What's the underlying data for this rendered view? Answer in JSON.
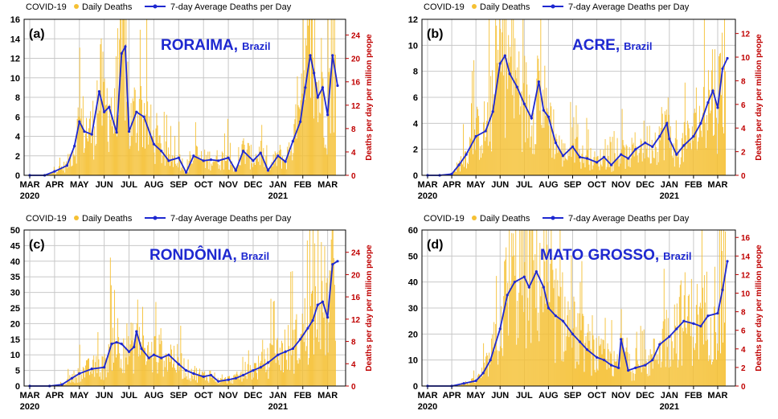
{
  "colors": {
    "daily_bar": "#F5C033",
    "average_line": "#1E28D0",
    "right_axis": "#C00000",
    "region_title": "#1E28D0",
    "grid": "#C8C8C8"
  },
  "legend": {
    "source": "COVID-19",
    "daily": "Daily Deaths",
    "average": "7-day Average Deaths per Day"
  },
  "country_suffix": "Brazil",
  "right_axis_label": "Deaths per day per million peope",
  "months": [
    "MAR",
    "APR",
    "MAY",
    "JUN",
    "JUL",
    "AUG",
    "SEP",
    "OCT",
    "NOV",
    "DEC",
    "JAN",
    "FEB",
    "MAR"
  ],
  "years": [
    "2020",
    "2021"
  ],
  "chart_data": [
    {
      "type": "bar+line",
      "panel": "(a)",
      "region": "RORAIMA,",
      "ylim": [
        0,
        16
      ],
      "yticks": [
        "0",
        "2",
        "4",
        "6",
        "8",
        "10",
        "12",
        "14",
        "16"
      ],
      "y2lim": [
        0,
        26.7
      ],
      "y2ticks": [
        "0",
        "4",
        "8",
        "12",
        "16",
        "20",
        "24"
      ],
      "series": [
        {
          "name": "7-day Average Deaths per Day",
          "x_month": [
            0,
            0.6,
            1.0,
            1.5,
            1.8,
            2.0,
            2.2,
            2.5,
            2.8,
            3.0,
            3.2,
            3.5,
            3.7,
            3.85,
            4.0,
            4.3,
            4.6,
            5.0,
            5.3,
            5.6,
            6.0,
            6.3,
            6.6,
            7.0,
            7.3,
            7.6,
            8.0,
            8.3,
            8.6,
            9.0,
            9.3,
            9.6,
            10.0,
            10.3,
            10.6,
            10.9,
            11.1,
            11.3,
            11.45,
            11.6,
            11.8,
            12.0,
            12.2,
            12.4
          ],
          "y": [
            0,
            0,
            0.4,
            1,
            3,
            5.5,
            4.5,
            4.2,
            8.6,
            6.5,
            7,
            4.4,
            12.5,
            13.2,
            4.5,
            6.5,
            6,
            3.2,
            2.5,
            1.5,
            1.8,
            0.3,
            2,
            1.5,
            1.6,
            1.5,
            1.8,
            0.5,
            2.5,
            1.5,
            2.3,
            0.5,
            2,
            1.4,
            3.5,
            5.5,
            9,
            12.3,
            10.5,
            8,
            9,
            6.2,
            12.3,
            9.2
          ]
        },
        {
          "name": "Daily Deaths",
          "peak": 16,
          "style": "dense daily bars"
        }
      ]
    },
    {
      "type": "bar+line",
      "panel": "(b)",
      "region": "ACRE,",
      "ylim": [
        0,
        12
      ],
      "yticks": [
        "0",
        "2",
        "4",
        "6",
        "8",
        "10",
        "12"
      ],
      "y2lim": [
        0,
        13.2
      ],
      "y2ticks": [
        "0",
        "2",
        "4",
        "6",
        "8",
        "10",
        "12"
      ],
      "series": [
        {
          "name": "7-day Average Deaths per Day",
          "x_month": [
            0,
            0.5,
            1.0,
            1.3,
            1.6,
            2.0,
            2.4,
            2.7,
            3.0,
            3.2,
            3.4,
            3.7,
            4.0,
            4.3,
            4.6,
            4.8,
            5.0,
            5.3,
            5.6,
            6.0,
            6.3,
            6.6,
            7.0,
            7.3,
            7.6,
            8.0,
            8.3,
            8.6,
            9.0,
            9.3,
            9.6,
            9.9,
            10.0,
            10.3,
            10.6,
            11.0,
            11.3,
            11.6,
            11.8,
            12.0,
            12.2,
            12.4
          ],
          "y": [
            0,
            0,
            0.1,
            0.8,
            1.6,
            3,
            3.4,
            4.9,
            8.6,
            9.2,
            7.8,
            6.8,
            5.5,
            4.4,
            7.2,
            5,
            4.5,
            2.5,
            1.5,
            2.2,
            1.4,
            1.3,
            1,
            1.4,
            0.8,
            1.6,
            1.3,
            2,
            2.5,
            2.2,
            3,
            4,
            2.8,
            1.6,
            2.3,
            3,
            4,
            5.6,
            6.5,
            5.2,
            8.2,
            9
          ]
        },
        {
          "name": "Daily Deaths",
          "peak": 12,
          "style": "dense daily bars"
        }
      ]
    },
    {
      "type": "bar+line",
      "panel": "(c)",
      "region": "RONDÔNIA,",
      "ylim": [
        0,
        50
      ],
      "yticks": [
        "0",
        "5",
        "10",
        "15",
        "20",
        "25",
        "30",
        "35",
        "40",
        "45",
        "50"
      ],
      "y2lim": [
        0,
        28
      ],
      "y2ticks": [
        "0",
        "4",
        "8",
        "12",
        "16",
        "20",
        "24"
      ],
      "series": [
        {
          "name": "7-day Average Deaths per Day",
          "x_month": [
            0,
            0.8,
            1.3,
            1.7,
            2.0,
            2.5,
            3.0,
            3.3,
            3.5,
            3.7,
            4.0,
            4.2,
            4.3,
            4.5,
            4.8,
            5.0,
            5.3,
            5.6,
            6.0,
            6.3,
            6.6,
            7.0,
            7.3,
            7.6,
            8.0,
            8.3,
            8.6,
            9.0,
            9.3,
            9.6,
            10.0,
            10.3,
            10.6,
            10.9,
            11.2,
            11.4,
            11.6,
            11.8,
            12.0,
            12.2,
            12.4
          ],
          "y": [
            0,
            0,
            0.5,
            2.5,
            4,
            5.5,
            6,
            13.5,
            14,
            13.5,
            11,
            12.5,
            17.5,
            12,
            9,
            10,
            9,
            10,
            7,
            5,
            4,
            3,
            3.5,
            1.5,
            2,
            2.5,
            3.5,
            5,
            6,
            7.5,
            10,
            11,
            12,
            15,
            18.5,
            21,
            26,
            27,
            22,
            39,
            40
          ]
        },
        {
          "name": "Daily Deaths",
          "peak": 50,
          "style": "dense daily bars"
        }
      ]
    },
    {
      "type": "bar+line",
      "panel": "(d)",
      "region": "MATO GROSSO,",
      "ylim": [
        0,
        60
      ],
      "yticks": [
        "0",
        "10",
        "20",
        "30",
        "40",
        "50",
        "60"
      ],
      "y2lim": [
        0,
        16.8
      ],
      "y2ticks": [
        "0",
        "2",
        "4",
        "6",
        "8",
        "10",
        "12",
        "14",
        "16"
      ],
      "series": [
        {
          "name": "7-day Average Deaths per Day",
          "x_month": [
            0,
            1.0,
            1.5,
            2.0,
            2.3,
            2.6,
            3.0,
            3.3,
            3.6,
            4.0,
            4.2,
            4.5,
            4.8,
            5.0,
            5.3,
            5.6,
            6.0,
            6.3,
            6.6,
            7.0,
            7.3,
            7.6,
            7.9,
            8.0,
            8.3,
            8.6,
            9.0,
            9.3,
            9.6,
            10.0,
            10.3,
            10.6,
            11.0,
            11.3,
            11.6,
            12.0,
            12.2,
            12.4
          ],
          "y": [
            0,
            0,
            1,
            2,
            5,
            10,
            22,
            35,
            40,
            42,
            38,
            44,
            38,
            30,
            27,
            25,
            20,
            17,
            14,
            11,
            10,
            8,
            7,
            18,
            6,
            7,
            8,
            10,
            16,
            19,
            22,
            25,
            24,
            23,
            27,
            28,
            37,
            48
          ]
        },
        {
          "name": "Daily Deaths",
          "peak": 60,
          "style": "dense daily bars"
        }
      ]
    }
  ]
}
